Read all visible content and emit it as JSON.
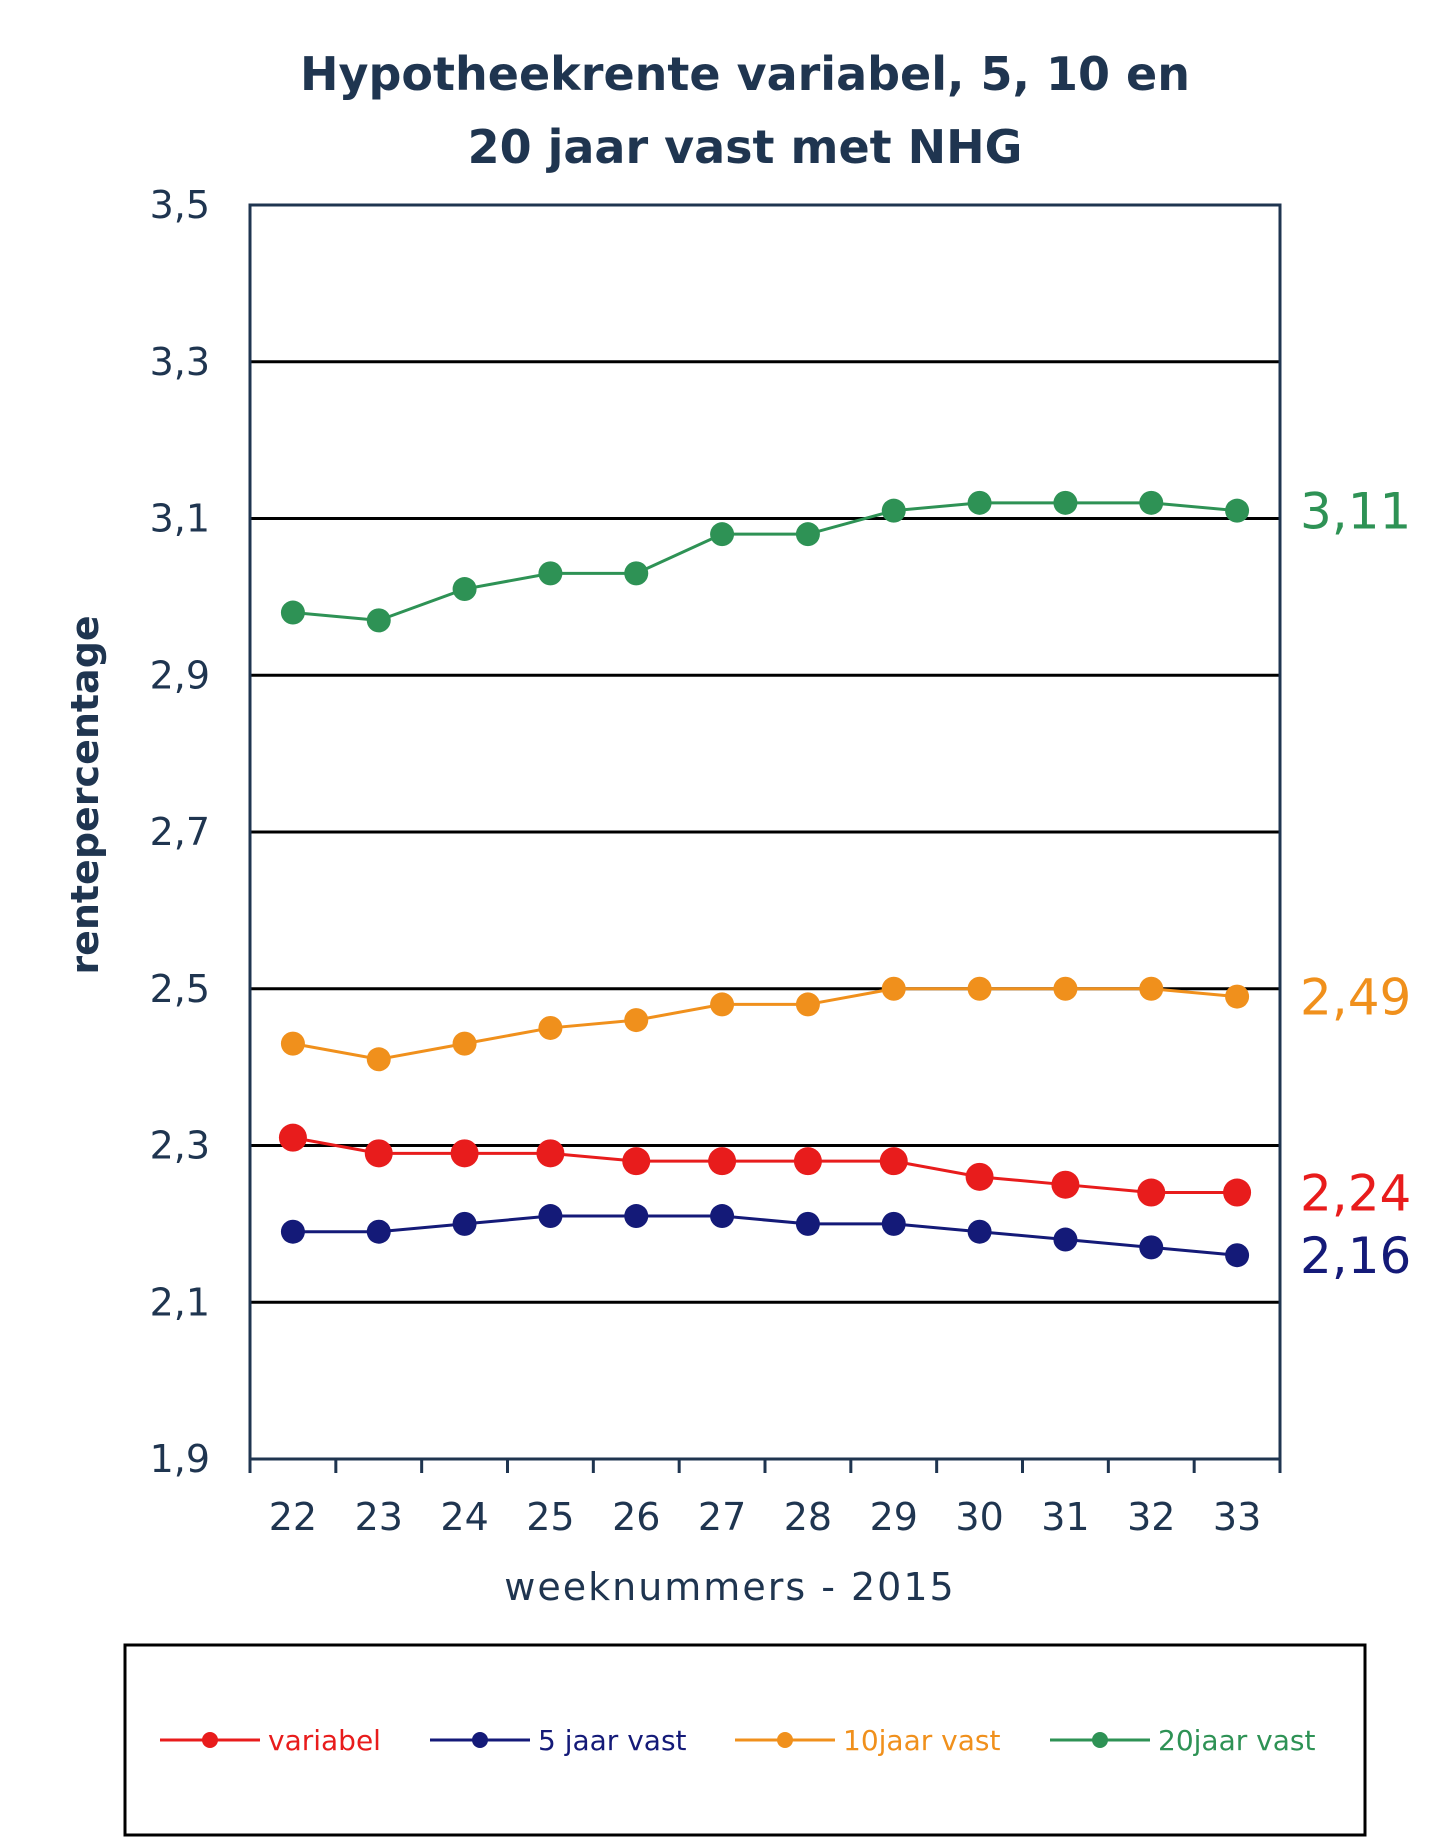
{
  "chart_data": {
    "type": "line",
    "title_lines": [
      "Hypotheekrente variabel, 5, 10 en",
      "20 jaar vast met NHG"
    ],
    "xlabel": "weeknummers - 2015",
    "ylabel": "rentepercentage",
    "categories": [
      "22",
      "23",
      "24",
      "25",
      "26",
      "27",
      "28",
      "29",
      "30",
      "31",
      "32",
      "33"
    ],
    "ylim": [
      1.9,
      3.5
    ],
    "yticks": [
      "1,9",
      "2,1",
      "2,3",
      "2,5",
      "2,7",
      "2,9",
      "3,1",
      "3,3",
      "3,5"
    ],
    "ytick_values": [
      1.9,
      2.1,
      2.3,
      2.5,
      2.7,
      2.9,
      3.1,
      3.3,
      3.5
    ],
    "grid": true,
    "legend_position": "bottom",
    "series": [
      {
        "name": "variabel",
        "color": "#e81c1c",
        "values": [
          2.31,
          2.29,
          2.29,
          2.29,
          2.28,
          2.28,
          2.28,
          2.28,
          2.26,
          2.25,
          2.24,
          2.24
        ],
        "end_label": "2,24",
        "marker": "large"
      },
      {
        "name": "5 jaar vast",
        "color": "#141a78",
        "values": [
          2.19,
          2.19,
          2.2,
          2.21,
          2.21,
          2.21,
          2.2,
          2.2,
          2.19,
          2.18,
          2.17,
          2.16
        ],
        "end_label": "2,16",
        "marker": "medium"
      },
      {
        "name": "10jaar vast",
        "color": "#f0901c",
        "values": [
          2.43,
          2.41,
          2.43,
          2.45,
          2.46,
          2.48,
          2.48,
          2.5,
          2.5,
          2.5,
          2.5,
          2.49
        ],
        "end_label": "2,49",
        "marker": "medium"
      },
      {
        "name": "20jaar vast",
        "color": "#2e9255",
        "values": [
          2.98,
          2.97,
          3.01,
          3.03,
          3.03,
          3.08,
          3.08,
          3.11,
          3.12,
          3.12,
          3.12,
          3.11
        ],
        "end_label": "3,11",
        "marker": "medium"
      }
    ]
  }
}
